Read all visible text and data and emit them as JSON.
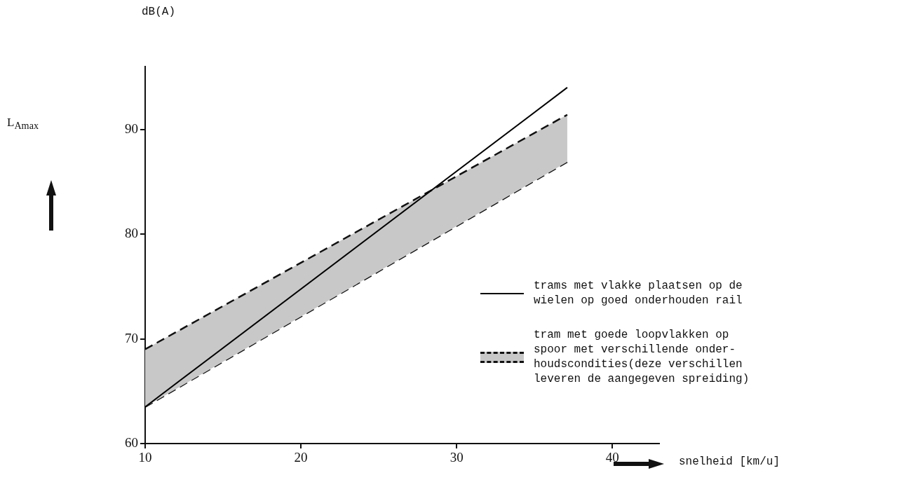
{
  "chart_data": {
    "type": "line",
    "xlabel": "snelheid [km/u]",
    "annotations": [
      "dB(A)",
      "L$_{Amax}$"
    ],
    "x": [
      10,
      37.1
    ],
    "xlim": [
      10,
      43
    ],
    "xticks": [
      10,
      20,
      30,
      40
    ],
    "ylim": [
      60,
      96
    ],
    "yticks": [
      60,
      70,
      80,
      90
    ],
    "grid": false,
    "legend": "bottom right",
    "marker": "none",
    "series": [
      {
        "name": "trams met vlakke plaatsen op de wielen op goed onderhouden rail",
        "color": "#000000",
        "line_style": "solid",
        "values": [
          63.5,
          94
        ]
      },
      {
        "name": "tram met goede loopvlakken op spoor met verschillende onder-houdscondities(deze verschillen leveren de aangegeven spreiding)",
        "type": "area",
        "color": "#111111",
        "line_style": "dashed",
        "values": [
          69,
          91.4
        ]
      },
      {
        "color": "#111111",
        "line_style": "dashed",
        "values": [
          63.5,
          86.9
        ]
      }
    ]
  }
}
